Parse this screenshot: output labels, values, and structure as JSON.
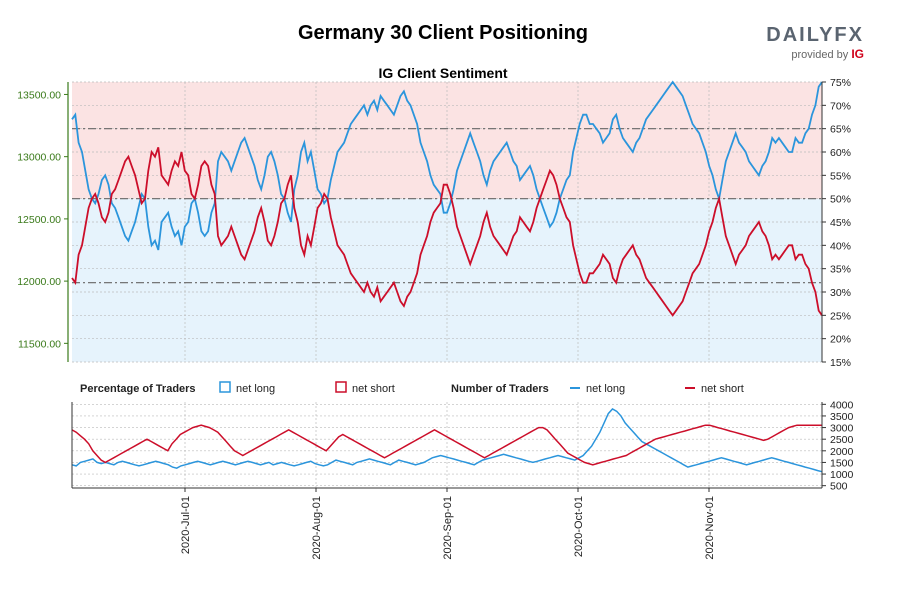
{
  "header": {
    "title": "Germany 30 Client Positioning",
    "brand": "DAILYFX",
    "brand_sub": "provided by",
    "brand_ig": "IG"
  },
  "chart_data": [
    {
      "type": "line",
      "title": "IG Client Sentiment",
      "left_axis": {
        "ticks": [
          "11500.00",
          "12000.00",
          "12500.00",
          "13000.00",
          "13500.00"
        ],
        "values": [
          11500,
          12000,
          12500,
          13000,
          13500
        ],
        "range": [
          11350,
          13600
        ],
        "color": "#3a7a1a"
      },
      "right_axis": {
        "ticks": [
          "15%",
          "20%",
          "25%",
          "30%",
          "35%",
          "40%",
          "45%",
          "50%",
          "55%",
          "60%",
          "65%",
          "70%",
          "75%"
        ],
        "range": [
          15,
          75
        ]
      },
      "reference_lines": [
        {
          "value": 50,
          "style": "dash-dot"
        },
        {
          "value": 65,
          "style": "dash-dot"
        },
        {
          "value": 32,
          "style": "dash-dot"
        }
      ],
      "x_ticks": [
        "2020-Jul-01",
        "2020-Aug-01",
        "2020-Sep-01",
        "2020-Oct-01",
        "2020-Nov-01"
      ],
      "series": [
        {
          "name": "net long",
          "color": "#2b95dc",
          "values": [
            67,
            68,
            62,
            60,
            56,
            52,
            50,
            49,
            51,
            54,
            55,
            53,
            49,
            48,
            46,
            44,
            42,
            41,
            43,
            45,
            48,
            51,
            50,
            44,
            40,
            41,
            39,
            45,
            46,
            47,
            44,
            42,
            43,
            40,
            44,
            45,
            49,
            50,
            47,
            43,
            42,
            43,
            47,
            49,
            58,
            60,
            59,
            58,
            56,
            58,
            60,
            62,
            63,
            61,
            59,
            57,
            54,
            52,
            55,
            59,
            60,
            58,
            55,
            51,
            50,
            47,
            45,
            52,
            55,
            60,
            62,
            58,
            60,
            56,
            52,
            51,
            49,
            50,
            54,
            57,
            60,
            61,
            62,
            64,
            66,
            67,
            68,
            69,
            70,
            68,
            70,
            71,
            69,
            72,
            71,
            70,
            69,
            68,
            70,
            72,
            73,
            71,
            70,
            68,
            66,
            62,
            60,
            58,
            55,
            53,
            52,
            51,
            47,
            47,
            49,
            52,
            56,
            58,
            60,
            62,
            64,
            62,
            60,
            58,
            55,
            53,
            56,
            58,
            59,
            60,
            61,
            62,
            60,
            58,
            57,
            54,
            55,
            56,
            57,
            55,
            52,
            50,
            48,
            46,
            44,
            45,
            47,
            50,
            52,
            54,
            55,
            60,
            63,
            66,
            68,
            68,
            66,
            66,
            65,
            64,
            62,
            63,
            64,
            67,
            68,
            65,
            63,
            62,
            61,
            60,
            62,
            63,
            65,
            67,
            68,
            69,
            70,
            71,
            72,
            73,
            74,
            75,
            74,
            73,
            72,
            70,
            68,
            66,
            65,
            64,
            62,
            60,
            57,
            55,
            52,
            50,
            54,
            58,
            60,
            62,
            64,
            62,
            61,
            60,
            58,
            57,
            56,
            55,
            57,
            58,
            60,
            63,
            62,
            63,
            62,
            61,
            60,
            60,
            63,
            62,
            62,
            64,
            65,
            68,
            70,
            74,
            75
          ]
        },
        {
          "name": "net short",
          "color": "#cc0e2a",
          "values": [
            33,
            32,
            38,
            40,
            44,
            48,
            50,
            51,
            49,
            46,
            45,
            47,
            51,
            52,
            54,
            56,
            58,
            59,
            57,
            55,
            52,
            49,
            50,
            56,
            60,
            59,
            61,
            55,
            54,
            53,
            56,
            58,
            57,
            60,
            56,
            55,
            51,
            50,
            53,
            57,
            58,
            57,
            53,
            51,
            42,
            40,
            41,
            42,
            44,
            42,
            40,
            38,
            37,
            39,
            41,
            43,
            46,
            48,
            45,
            41,
            40,
            42,
            45,
            49,
            50,
            53,
            55,
            48,
            45,
            40,
            38,
            42,
            40,
            44,
            48,
            49,
            51,
            50,
            46,
            43,
            40,
            39,
            38,
            36,
            34,
            33,
            32,
            31,
            30,
            32,
            30,
            29,
            31,
            28,
            29,
            30,
            31,
            32,
            30,
            28,
            27,
            29,
            30,
            32,
            34,
            38,
            40,
            42,
            45,
            47,
            48,
            49,
            53,
            53,
            51,
            48,
            44,
            42,
            40,
            38,
            36,
            38,
            40,
            42,
            45,
            47,
            44,
            42,
            41,
            40,
            39,
            38,
            40,
            42,
            43,
            46,
            45,
            44,
            43,
            45,
            48,
            50,
            52,
            54,
            56,
            55,
            53,
            50,
            48,
            46,
            45,
            40,
            37,
            34,
            32,
            32,
            34,
            34,
            35,
            36,
            38,
            37,
            36,
            33,
            32,
            35,
            37,
            38,
            39,
            40,
            38,
            37,
            35,
            33,
            32,
            31,
            30,
            29,
            28,
            27,
            26,
            25,
            26,
            27,
            28,
            30,
            32,
            34,
            35,
            36,
            38,
            40,
            43,
            45,
            48,
            50,
            46,
            42,
            40,
            38,
            36,
            38,
            39,
            40,
            42,
            43,
            44,
            45,
            43,
            42,
            40,
            37,
            38,
            37,
            38,
            39,
            40,
            40,
            37,
            38,
            38,
            36,
            35,
            32,
            30,
            26,
            25
          ]
        }
      ]
    },
    {
      "type": "line",
      "title": "Number of Traders",
      "right_axis": {
        "ticks": [
          "500",
          "1000",
          "1500",
          "2000",
          "2500",
          "3000",
          "3500",
          "4000"
        ],
        "range": [
          400,
          4100
        ]
      },
      "series": [
        {
          "name": "net long",
          "color": "#2b95dc",
          "values": [
            1400,
            1350,
            1500,
            1550,
            1600,
            1650,
            1500,
            1450,
            1500,
            1450,
            1400,
            1500,
            1550,
            1500,
            1450,
            1400,
            1350,
            1400,
            1450,
            1500,
            1550,
            1500,
            1450,
            1400,
            1300,
            1250,
            1350,
            1400,
            1450,
            1500,
            1550,
            1500,
            1450,
            1400,
            1450,
            1500,
            1550,
            1500,
            1450,
            1400,
            1450,
            1500,
            1550,
            1500,
            1450,
            1400,
            1450,
            1500,
            1400,
            1450,
            1500,
            1450,
            1400,
            1350,
            1400,
            1450,
            1500,
            1550,
            1450,
            1400,
            1350,
            1400,
            1500,
            1600,
            1550,
            1500,
            1450,
            1400,
            1500,
            1550,
            1600,
            1650,
            1600,
            1550,
            1500,
            1450,
            1400,
            1500,
            1600,
            1550,
            1500,
            1450,
            1400,
            1450,
            1500,
            1600,
            1700,
            1750,
            1800,
            1750,
            1700,
            1650,
            1600,
            1550,
            1500,
            1450,
            1400,
            1500,
            1600,
            1650,
            1700,
            1750,
            1800,
            1850,
            1800,
            1750,
            1700,
            1650,
            1600,
            1550,
            1500,
            1550,
            1600,
            1650,
            1700,
            1750,
            1800,
            1750,
            1700,
            1650,
            1600,
            1700,
            1800,
            2000,
            2200,
            2500,
            2800,
            3200,
            3600,
            3800,
            3700,
            3500,
            3200,
            3000,
            2800,
            2600,
            2400,
            2300,
            2200,
            2100,
            2000,
            1900,
            1800,
            1700,
            1600,
            1500,
            1400,
            1300,
            1350,
            1400,
            1450,
            1500,
            1550,
            1600,
            1650,
            1700,
            1650,
            1600,
            1550,
            1500,
            1450,
            1400,
            1450,
            1500,
            1550,
            1600,
            1650,
            1700,
            1650,
            1600,
            1550,
            1500,
            1450,
            1400,
            1350,
            1300,
            1250,
            1200,
            1150,
            1100
          ]
        },
        {
          "name": "net short",
          "color": "#cc0e2a",
          "values": [
            2900,
            2800,
            2650,
            2500,
            2300,
            2000,
            1800,
            1600,
            1500,
            1600,
            1700,
            1800,
            1900,
            2000,
            2100,
            2200,
            2300,
            2400,
            2500,
            2400,
            2300,
            2200,
            2100,
            2000,
            2300,
            2500,
            2700,
            2800,
            2900,
            3000,
            3050,
            3100,
            3050,
            3000,
            2900,
            2800,
            2600,
            2400,
            2200,
            2000,
            1900,
            1800,
            1900,
            2000,
            2100,
            2200,
            2300,
            2400,
            2500,
            2600,
            2700,
            2800,
            2900,
            2800,
            2700,
            2600,
            2500,
            2400,
            2300,
            2200,
            2100,
            2000,
            2200,
            2400,
            2600,
            2700,
            2600,
            2500,
            2400,
            2300,
            2200,
            2100,
            2000,
            1900,
            1800,
            1700,
            1800,
            1900,
            2000,
            2100,
            2200,
            2300,
            2400,
            2500,
            2600,
            2700,
            2800,
            2900,
            2800,
            2700,
            2600,
            2500,
            2400,
            2300,
            2200,
            2100,
            2000,
            1900,
            1800,
            1700,
            1800,
            1900,
            2000,
            2100,
            2200,
            2300,
            2400,
            2500,
            2600,
            2700,
            2800,
            2900,
            3000,
            3000,
            2900,
            2700,
            2500,
            2300,
            2100,
            1900,
            1800,
            1700,
            1600,
            1500,
            1450,
            1400,
            1450,
            1500,
            1550,
            1600,
            1650,
            1700,
            1750,
            1800,
            1900,
            2000,
            2100,
            2200,
            2300,
            2400,
            2500,
            2550,
            2600,
            2650,
            2700,
            2750,
            2800,
            2850,
            2900,
            2950,
            3000,
            3050,
            3100,
            3100,
            3050,
            3000,
            2950,
            2900,
            2850,
            2800,
            2750,
            2700,
            2650,
            2600,
            2550,
            2500,
            2450,
            2500,
            2600,
            2700,
            2800,
            2900,
            3000,
            3050,
            3100,
            3100,
            3100,
            3100,
            3100,
            3100,
            3100
          ]
        }
      ]
    }
  ],
  "legend": {
    "pct_heading": "Percentage of Traders",
    "num_heading": "Number of Traders",
    "long_label": "net long",
    "short_label": "net short"
  }
}
